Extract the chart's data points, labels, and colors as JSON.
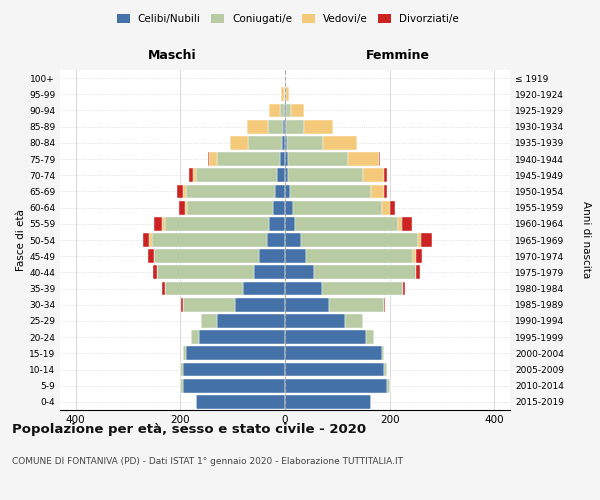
{
  "age_groups": [
    "0-4",
    "5-9",
    "10-14",
    "15-19",
    "20-24",
    "25-29",
    "30-34",
    "35-39",
    "40-44",
    "45-49",
    "50-54",
    "55-59",
    "60-64",
    "65-69",
    "70-74",
    "75-79",
    "80-84",
    "85-89",
    "90-94",
    "95-99",
    "100+"
  ],
  "birth_years": [
    "2015-2019",
    "2010-2014",
    "2005-2009",
    "2000-2004",
    "1995-1999",
    "1990-1994",
    "1985-1989",
    "1980-1984",
    "1975-1979",
    "1970-1974",
    "1965-1969",
    "1960-1964",
    "1955-1959",
    "1950-1954",
    "1945-1949",
    "1940-1944",
    "1935-1939",
    "1930-1934",
    "1925-1929",
    "1920-1924",
    "≤ 1919"
  ],
  "males": {
    "celibi": [
      170,
      195,
      195,
      190,
      165,
      130,
      95,
      80,
      60,
      50,
      35,
      30,
      22,
      20,
      15,
      10,
      5,
      3,
      2,
      0,
      0
    ],
    "coniugati": [
      0,
      5,
      5,
      5,
      15,
      30,
      100,
      150,
      185,
      200,
      220,
      200,
      165,
      170,
      155,
      120,
      65,
      30,
      8,
      2,
      0
    ],
    "vedovi": [
      0,
      0,
      0,
      0,
      0,
      0,
      0,
      0,
      0,
      0,
      5,
      5,
      5,
      5,
      5,
      15,
      35,
      40,
      20,
      5,
      0
    ],
    "divorziati": [
      0,
      0,
      0,
      0,
      0,
      0,
      3,
      5,
      8,
      12,
      12,
      15,
      10,
      12,
      8,
      3,
      0,
      0,
      0,
      0,
      0
    ]
  },
  "females": {
    "nubili": [
      165,
      195,
      190,
      185,
      155,
      115,
      85,
      70,
      55,
      40,
      30,
      20,
      15,
      10,
      5,
      5,
      3,
      2,
      2,
      0,
      0
    ],
    "coniugate": [
      0,
      5,
      5,
      5,
      15,
      35,
      105,
      155,
      195,
      205,
      225,
      195,
      170,
      155,
      145,
      115,
      70,
      35,
      10,
      2,
      0
    ],
    "vedove": [
      0,
      0,
      0,
      0,
      0,
      0,
      0,
      0,
      0,
      5,
      5,
      8,
      15,
      25,
      40,
      60,
      65,
      55,
      25,
      5,
      0
    ],
    "divorziate": [
      0,
      0,
      0,
      0,
      0,
      0,
      2,
      5,
      8,
      12,
      20,
      20,
      10,
      5,
      5,
      2,
      0,
      0,
      0,
      0,
      0
    ]
  },
  "colors": {
    "celibi": "#4472a8",
    "coniugati": "#b8cba3",
    "vedovi": "#f5c97a",
    "divorziati": "#cc2222"
  },
  "xlim": 430,
  "title": "Popolazione per età, sesso e stato civile - 2020",
  "subtitle": "COMUNE DI FONTANIVA (PD) - Dati ISTAT 1° gennaio 2020 - Elaborazione TUTTITALIA.IT",
  "ylabel": "Fasce di età",
  "ylabel_right": "Anni di nascita",
  "xlabel_maschi": "Maschi",
  "xlabel_femmine": "Femmine",
  "bg_color": "#f5f5f5",
  "plot_bg": "#ffffff"
}
